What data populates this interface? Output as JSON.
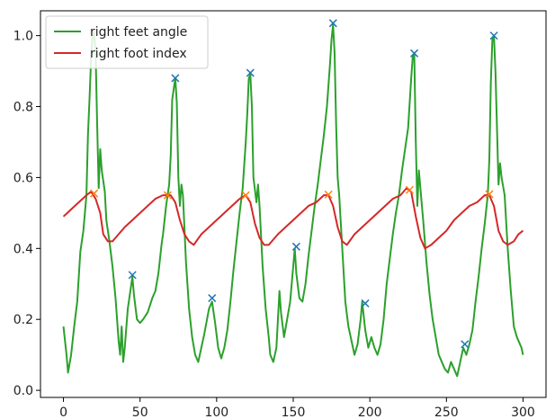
{
  "chart_data": {
    "type": "line",
    "xlim": [
      -15,
      315
    ],
    "ylim": [
      -0.02,
      1.07
    ],
    "x_ticks": [
      0,
      50,
      100,
      150,
      200,
      250,
      300
    ],
    "y_ticks": [
      0.0,
      0.2,
      0.4,
      0.6,
      0.8,
      1.0
    ],
    "x_tick_labels": [
      "0",
      "50",
      "100",
      "150",
      "200",
      "250",
      "300"
    ],
    "y_tick_labels": [
      "0.0",
      "0.2",
      "0.4",
      "0.6",
      "0.8",
      "1.0"
    ],
    "legend_position": "top-left",
    "grid": false,
    "series": [
      {
        "name": "right feet angle",
        "color": "#2ca02c",
        "points": [
          [
            0,
            0.18
          ],
          [
            2,
            0.1
          ],
          [
            3,
            0.05
          ],
          [
            5,
            0.1
          ],
          [
            7,
            0.18
          ],
          [
            9,
            0.25
          ],
          [
            11,
            0.39
          ],
          [
            13,
            0.45
          ],
          [
            15,
            0.55
          ],
          [
            16,
            0.72
          ],
          [
            17,
            0.82
          ],
          [
            18,
            0.93
          ],
          [
            19,
            1.0
          ],
          [
            20,
            1.01
          ],
          [
            21,
            0.95
          ],
          [
            22,
            0.75
          ],
          [
            23,
            0.57
          ],
          [
            24,
            0.68
          ],
          [
            25,
            0.62
          ],
          [
            27,
            0.56
          ],
          [
            28,
            0.48
          ],
          [
            30,
            0.42
          ],
          [
            32,
            0.35
          ],
          [
            34,
            0.26
          ],
          [
            35,
            0.2
          ],
          [
            36,
            0.14
          ],
          [
            37,
            0.1
          ],
          [
            38,
            0.18
          ],
          [
            39,
            0.08
          ],
          [
            40,
            0.12
          ],
          [
            42,
            0.23
          ],
          [
            44,
            0.29
          ],
          [
            45,
            0.32
          ],
          [
            46,
            0.27
          ],
          [
            48,
            0.2
          ],
          [
            50,
            0.19
          ],
          [
            52,
            0.2
          ],
          [
            55,
            0.22
          ],
          [
            58,
            0.26
          ],
          [
            60,
            0.28
          ],
          [
            62,
            0.33
          ],
          [
            63,
            0.37
          ],
          [
            64,
            0.41
          ],
          [
            65,
            0.44
          ],
          [
            67,
            0.52
          ],
          [
            69,
            0.58
          ],
          [
            70,
            0.66
          ],
          [
            71,
            0.82
          ],
          [
            72,
            0.85
          ],
          [
            73,
            0.88
          ],
          [
            74,
            0.81
          ],
          [
            75,
            0.6
          ],
          [
            76,
            0.52
          ],
          [
            77,
            0.58
          ],
          [
            78,
            0.55
          ],
          [
            80,
            0.36
          ],
          [
            82,
            0.23
          ],
          [
            84,
            0.15
          ],
          [
            86,
            0.1
          ],
          [
            88,
            0.08
          ],
          [
            90,
            0.12
          ],
          [
            92,
            0.16
          ],
          [
            95,
            0.23
          ],
          [
            97,
            0.25
          ],
          [
            99,
            0.19
          ],
          [
            101,
            0.12
          ],
          [
            103,
            0.09
          ],
          [
            105,
            0.12
          ],
          [
            107,
            0.17
          ],
          [
            109,
            0.25
          ],
          [
            111,
            0.34
          ],
          [
            113,
            0.42
          ],
          [
            115,
            0.5
          ],
          [
            117,
            0.57
          ],
          [
            119,
            0.7
          ],
          [
            120,
            0.78
          ],
          [
            121,
            0.88
          ],
          [
            122,
            0.89
          ],
          [
            123,
            0.8
          ],
          [
            124,
            0.6
          ],
          [
            126,
            0.53
          ],
          [
            127,
            0.58
          ],
          [
            128,
            0.52
          ],
          [
            130,
            0.35
          ],
          [
            132,
            0.23
          ],
          [
            134,
            0.15
          ],
          [
            135,
            0.1
          ],
          [
            137,
            0.08
          ],
          [
            139,
            0.12
          ],
          [
            141,
            0.28
          ],
          [
            142,
            0.22
          ],
          [
            144,
            0.15
          ],
          [
            146,
            0.2
          ],
          [
            148,
            0.25
          ],
          [
            150,
            0.35
          ],
          [
            151,
            0.4
          ],
          [
            152,
            0.33
          ],
          [
            154,
            0.26
          ],
          [
            156,
            0.25
          ],
          [
            158,
            0.3
          ],
          [
            160,
            0.38
          ],
          [
            162,
            0.45
          ],
          [
            164,
            0.52
          ],
          [
            166,
            0.58
          ],
          [
            168,
            0.65
          ],
          [
            170,
            0.72
          ],
          [
            172,
            0.8
          ],
          [
            174,
            0.92
          ],
          [
            175,
            0.99
          ],
          [
            176,
            1.03
          ],
          [
            177,
            0.95
          ],
          [
            178,
            0.75
          ],
          [
            179,
            0.6
          ],
          [
            180,
            0.55
          ],
          [
            182,
            0.4
          ],
          [
            184,
            0.25
          ],
          [
            186,
            0.18
          ],
          [
            188,
            0.14
          ],
          [
            190,
            0.1
          ],
          [
            192,
            0.13
          ],
          [
            194,
            0.2
          ],
          [
            195,
            0.25
          ],
          [
            197,
            0.17
          ],
          [
            199,
            0.12
          ],
          [
            201,
            0.15
          ],
          [
            203,
            0.12
          ],
          [
            205,
            0.1
          ],
          [
            207,
            0.13
          ],
          [
            209,
            0.2
          ],
          [
            211,
            0.3
          ],
          [
            213,
            0.37
          ],
          [
            215,
            0.44
          ],
          [
            217,
            0.5
          ],
          [
            219,
            0.55
          ],
          [
            221,
            0.62
          ],
          [
            223,
            0.68
          ],
          [
            225,
            0.74
          ],
          [
            227,
            0.88
          ],
          [
            228,
            0.94
          ],
          [
            229,
            0.95
          ],
          [
            230,
            0.7
          ],
          [
            231,
            0.52
          ],
          [
            232,
            0.62
          ],
          [
            233,
            0.57
          ],
          [
            235,
            0.47
          ],
          [
            237,
            0.36
          ],
          [
            239,
            0.27
          ],
          [
            241,
            0.2
          ],
          [
            243,
            0.15
          ],
          [
            245,
            0.1
          ],
          [
            247,
            0.08
          ],
          [
            249,
            0.06
          ],
          [
            251,
            0.05
          ],
          [
            253,
            0.08
          ],
          [
            255,
            0.06
          ],
          [
            257,
            0.04
          ],
          [
            259,
            0.08
          ],
          [
            261,
            0.12
          ],
          [
            263,
            0.1
          ],
          [
            265,
            0.13
          ],
          [
            267,
            0.17
          ],
          [
            269,
            0.25
          ],
          [
            271,
            0.32
          ],
          [
            273,
            0.4
          ],
          [
            275,
            0.47
          ],
          [
            277,
            0.55
          ],
          [
            278,
            0.65
          ],
          [
            279,
            0.87
          ],
          [
            280,
            0.99
          ],
          [
            281,
            1.0
          ],
          [
            282,
            0.9
          ],
          [
            283,
            0.74
          ],
          [
            284,
            0.58
          ],
          [
            285,
            0.64
          ],
          [
            286,
            0.6
          ],
          [
            288,
            0.55
          ],
          [
            290,
            0.4
          ],
          [
            292,
            0.28
          ],
          [
            294,
            0.18
          ],
          [
            296,
            0.15
          ],
          [
            298,
            0.13
          ],
          [
            299,
            0.12
          ],
          [
            300,
            0.1
          ]
        ]
      },
      {
        "name": "right foot index",
        "color": "#d62728",
        "points": [
          [
            0,
            0.49
          ],
          [
            5,
            0.51
          ],
          [
            10,
            0.53
          ],
          [
            15,
            0.55
          ],
          [
            18,
            0.56
          ],
          [
            21,
            0.54
          ],
          [
            24,
            0.5
          ],
          [
            26,
            0.44
          ],
          [
            29,
            0.42
          ],
          [
            32,
            0.42
          ],
          [
            36,
            0.44
          ],
          [
            40,
            0.46
          ],
          [
            45,
            0.48
          ],
          [
            50,
            0.5
          ],
          [
            55,
            0.52
          ],
          [
            60,
            0.54
          ],
          [
            65,
            0.55
          ],
          [
            70,
            0.55
          ],
          [
            73,
            0.53
          ],
          [
            76,
            0.48
          ],
          [
            79,
            0.44
          ],
          [
            82,
            0.42
          ],
          [
            85,
            0.41
          ],
          [
            90,
            0.44
          ],
          [
            95,
            0.46
          ],
          [
            100,
            0.48
          ],
          [
            105,
            0.5
          ],
          [
            110,
            0.52
          ],
          [
            115,
            0.54
          ],
          [
            119,
            0.55
          ],
          [
            122,
            0.53
          ],
          [
            125,
            0.47
          ],
          [
            128,
            0.43
          ],
          [
            131,
            0.41
          ],
          [
            134,
            0.41
          ],
          [
            140,
            0.44
          ],
          [
            145,
            0.46
          ],
          [
            150,
            0.48
          ],
          [
            155,
            0.5
          ],
          [
            160,
            0.52
          ],
          [
            165,
            0.53
          ],
          [
            170,
            0.55
          ],
          [
            173,
            0.55
          ],
          [
            176,
            0.52
          ],
          [
            179,
            0.46
          ],
          [
            182,
            0.42
          ],
          [
            185,
            0.41
          ],
          [
            190,
            0.44
          ],
          [
            195,
            0.46
          ],
          [
            200,
            0.48
          ],
          [
            205,
            0.5
          ],
          [
            210,
            0.52
          ],
          [
            215,
            0.54
          ],
          [
            220,
            0.55
          ],
          [
            224,
            0.57
          ],
          [
            227,
            0.56
          ],
          [
            230,
            0.49
          ],
          [
            233,
            0.43
          ],
          [
            236,
            0.4
          ],
          [
            240,
            0.41
          ],
          [
            245,
            0.43
          ],
          [
            250,
            0.45
          ],
          [
            255,
            0.48
          ],
          [
            260,
            0.5
          ],
          [
            265,
            0.52
          ],
          [
            270,
            0.53
          ],
          [
            275,
            0.55
          ],
          [
            278,
            0.55
          ],
          [
            281,
            0.52
          ],
          [
            284,
            0.45
          ],
          [
            287,
            0.42
          ],
          [
            290,
            0.41
          ],
          [
            294,
            0.42
          ],
          [
            297,
            0.44
          ],
          [
            300,
            0.45
          ]
        ]
      }
    ],
    "markers": [
      {
        "x": 20,
        "y": 0.555,
        "color": "#ff7f0e",
        "marker": "x"
      },
      {
        "x": 68,
        "y": 0.55,
        "color": "#ff7f0e",
        "marker": "x"
      },
      {
        "x": 119,
        "y": 0.55,
        "color": "#ff7f0e",
        "marker": "x"
      },
      {
        "x": 173,
        "y": 0.552,
        "color": "#ff7f0e",
        "marker": "x"
      },
      {
        "x": 226,
        "y": 0.565,
        "color": "#ff7f0e",
        "marker": "x"
      },
      {
        "x": 278,
        "y": 0.553,
        "color": "#ff7f0e",
        "marker": "x"
      },
      {
        "x": 45,
        "y": 0.325,
        "color": "#1f77b4",
        "marker": "x"
      },
      {
        "x": 73,
        "y": 0.88,
        "color": "#1f77b4",
        "marker": "x"
      },
      {
        "x": 97,
        "y": 0.26,
        "color": "#1f77b4",
        "marker": "x"
      },
      {
        "x": 122,
        "y": 0.895,
        "color": "#1f77b4",
        "marker": "x"
      },
      {
        "x": 152,
        "y": 0.405,
        "color": "#1f77b4",
        "marker": "x"
      },
      {
        "x": 176,
        "y": 1.035,
        "color": "#1f77b4",
        "marker": "x"
      },
      {
        "x": 197,
        "y": 0.245,
        "color": "#1f77b4",
        "marker": "x"
      },
      {
        "x": 229,
        "y": 0.95,
        "color": "#1f77b4",
        "marker": "x"
      },
      {
        "x": 262,
        "y": 0.13,
        "color": "#1f77b4",
        "marker": "x"
      },
      {
        "x": 281,
        "y": 1.0,
        "color": "#1f77b4",
        "marker": "x"
      }
    ]
  }
}
